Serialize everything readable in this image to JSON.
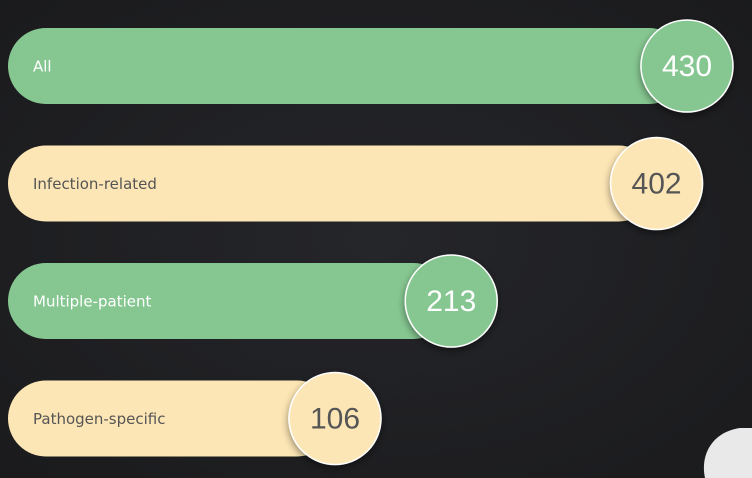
{
  "chart_data": {
    "type": "bar",
    "orientation": "horizontal",
    "categories": [
      "All",
      "Infection-related",
      "Multiple-patient",
      "Pathogen-specific"
    ],
    "values": [
      430,
      402,
      213,
      106
    ],
    "colors": [
      "#86c791",
      "#fde6b5",
      "#86c791",
      "#fde6b5"
    ]
  }
}
